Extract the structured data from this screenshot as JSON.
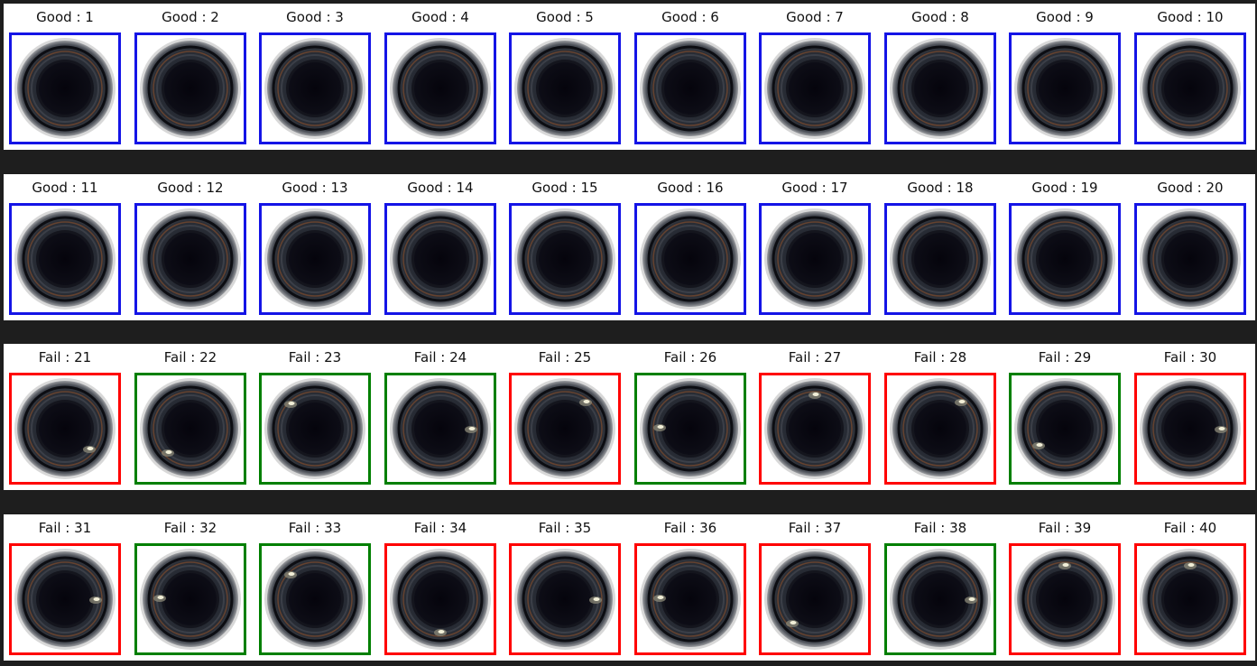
{
  "colors": {
    "good_border": "#1414e6",
    "fail_red_border": "#ff0000",
    "fail_green_border": "#007f00",
    "separator": "#1e1e1e"
  },
  "rows": [
    {
      "items": [
        {
          "label": "Good : 1",
          "border": "blue",
          "defect": null
        },
        {
          "label": "Good : 2",
          "border": "blue",
          "defect": null
        },
        {
          "label": "Good : 3",
          "border": "blue",
          "defect": null
        },
        {
          "label": "Good : 4",
          "border": "blue",
          "defect": null
        },
        {
          "label": "Good : 5",
          "border": "blue",
          "defect": null
        },
        {
          "label": "Good : 6",
          "border": "blue",
          "defect": null
        },
        {
          "label": "Good : 7",
          "border": "blue",
          "defect": null
        },
        {
          "label": "Good : 8",
          "border": "blue",
          "defect": null
        },
        {
          "label": "Good : 9",
          "border": "blue",
          "defect": null
        },
        {
          "label": "Good : 10",
          "border": "blue",
          "defect": null
        }
      ]
    },
    {
      "items": [
        {
          "label": "Good : 11",
          "border": "blue",
          "defect": null
        },
        {
          "label": "Good : 12",
          "border": "blue",
          "defect": null
        },
        {
          "label": "Good : 13",
          "border": "blue",
          "defect": null
        },
        {
          "label": "Good : 14",
          "border": "blue",
          "defect": null
        },
        {
          "label": "Good : 15",
          "border": "blue",
          "defect": null
        },
        {
          "label": "Good : 16",
          "border": "blue",
          "defect": null
        },
        {
          "label": "Good : 17",
          "border": "blue",
          "defect": null
        },
        {
          "label": "Good : 18",
          "border": "blue",
          "defect": null
        },
        {
          "label": "Good : 19",
          "border": "blue",
          "defect": null
        },
        {
          "label": "Good : 20",
          "border": "blue",
          "defect": null
        }
      ]
    },
    {
      "items": [
        {
          "label": "Fail : 21",
          "border": "red",
          "defect": "lower-right"
        },
        {
          "label": "Fail : 22",
          "border": "green",
          "defect": "bottom-left"
        },
        {
          "label": "Fail : 23",
          "border": "green",
          "defect": "upper-left"
        },
        {
          "label": "Fail : 24",
          "border": "green",
          "defect": "right"
        },
        {
          "label": "Fail : 25",
          "border": "red",
          "defect": "top-right"
        },
        {
          "label": "Fail : 26",
          "border": "green",
          "defect": "left"
        },
        {
          "label": "Fail : 27",
          "border": "red",
          "defect": "top"
        },
        {
          "label": "Fail : 28",
          "border": "red",
          "defect": "top-right"
        },
        {
          "label": "Fail : 29",
          "border": "green",
          "defect": "lower-left"
        },
        {
          "label": "Fail : 30",
          "border": "red",
          "defect": "right"
        }
      ]
    },
    {
      "items": [
        {
          "label": "Fail : 31",
          "border": "red",
          "defect": "right"
        },
        {
          "label": "Fail : 32",
          "border": "green",
          "defect": "left"
        },
        {
          "label": "Fail : 33",
          "border": "green",
          "defect": "upper-left"
        },
        {
          "label": "Fail : 34",
          "border": "red",
          "defect": "bottom"
        },
        {
          "label": "Fail : 35",
          "border": "red",
          "defect": "right"
        },
        {
          "label": "Fail : 36",
          "border": "red",
          "defect": "left"
        },
        {
          "label": "Fail : 37",
          "border": "red",
          "defect": "bottom-left"
        },
        {
          "label": "Fail : 38",
          "border": "green",
          "defect": "right"
        },
        {
          "label": "Fail : 39",
          "border": "red",
          "defect": "top"
        },
        {
          "label": "Fail : 40",
          "border": "red",
          "defect": "top"
        }
      ]
    }
  ]
}
